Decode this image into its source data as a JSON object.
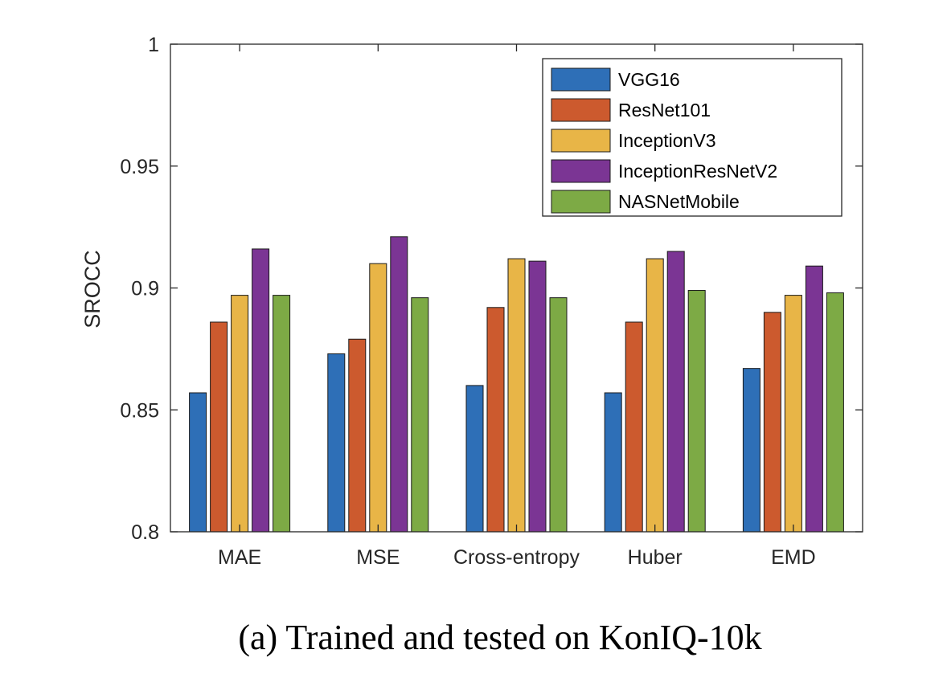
{
  "chart_data": {
    "type": "bar",
    "title": "",
    "xlabel": "",
    "ylabel": "SROCC",
    "ylim": [
      0.8,
      1
    ],
    "yticks": [
      "0.8",
      "0.85",
      "0.9",
      "0.95",
      "1"
    ],
    "ytick_values": [
      0.8,
      0.85,
      0.9,
      0.95,
      1.0
    ],
    "grid": false,
    "legend_position": "top-right",
    "categories": [
      "MAE",
      "MSE",
      "Cross-entropy",
      "Huber",
      "EMD"
    ],
    "series": [
      {
        "name": "VGG16",
        "color": "#2E6FB7",
        "values": [
          0.857,
          0.873,
          0.86,
          0.857,
          0.867
        ]
      },
      {
        "name": "ResNet101",
        "color": "#CC5A2E",
        "values": [
          0.886,
          0.879,
          0.892,
          0.886,
          0.89
        ]
      },
      {
        "name": "InceptionV3",
        "color": "#E8B547",
        "values": [
          0.897,
          0.91,
          0.912,
          0.912,
          0.897
        ]
      },
      {
        "name": "InceptionResNetV2",
        "color": "#7B3594",
        "values": [
          0.916,
          0.921,
          0.911,
          0.915,
          0.909
        ]
      },
      {
        "name": "NASNetMobile",
        "color": "#7DAA45",
        "values": [
          0.897,
          0.896,
          0.896,
          0.899,
          0.898
        ]
      }
    ]
  },
  "caption": "(a) Trained and tested on KonIQ-10k"
}
